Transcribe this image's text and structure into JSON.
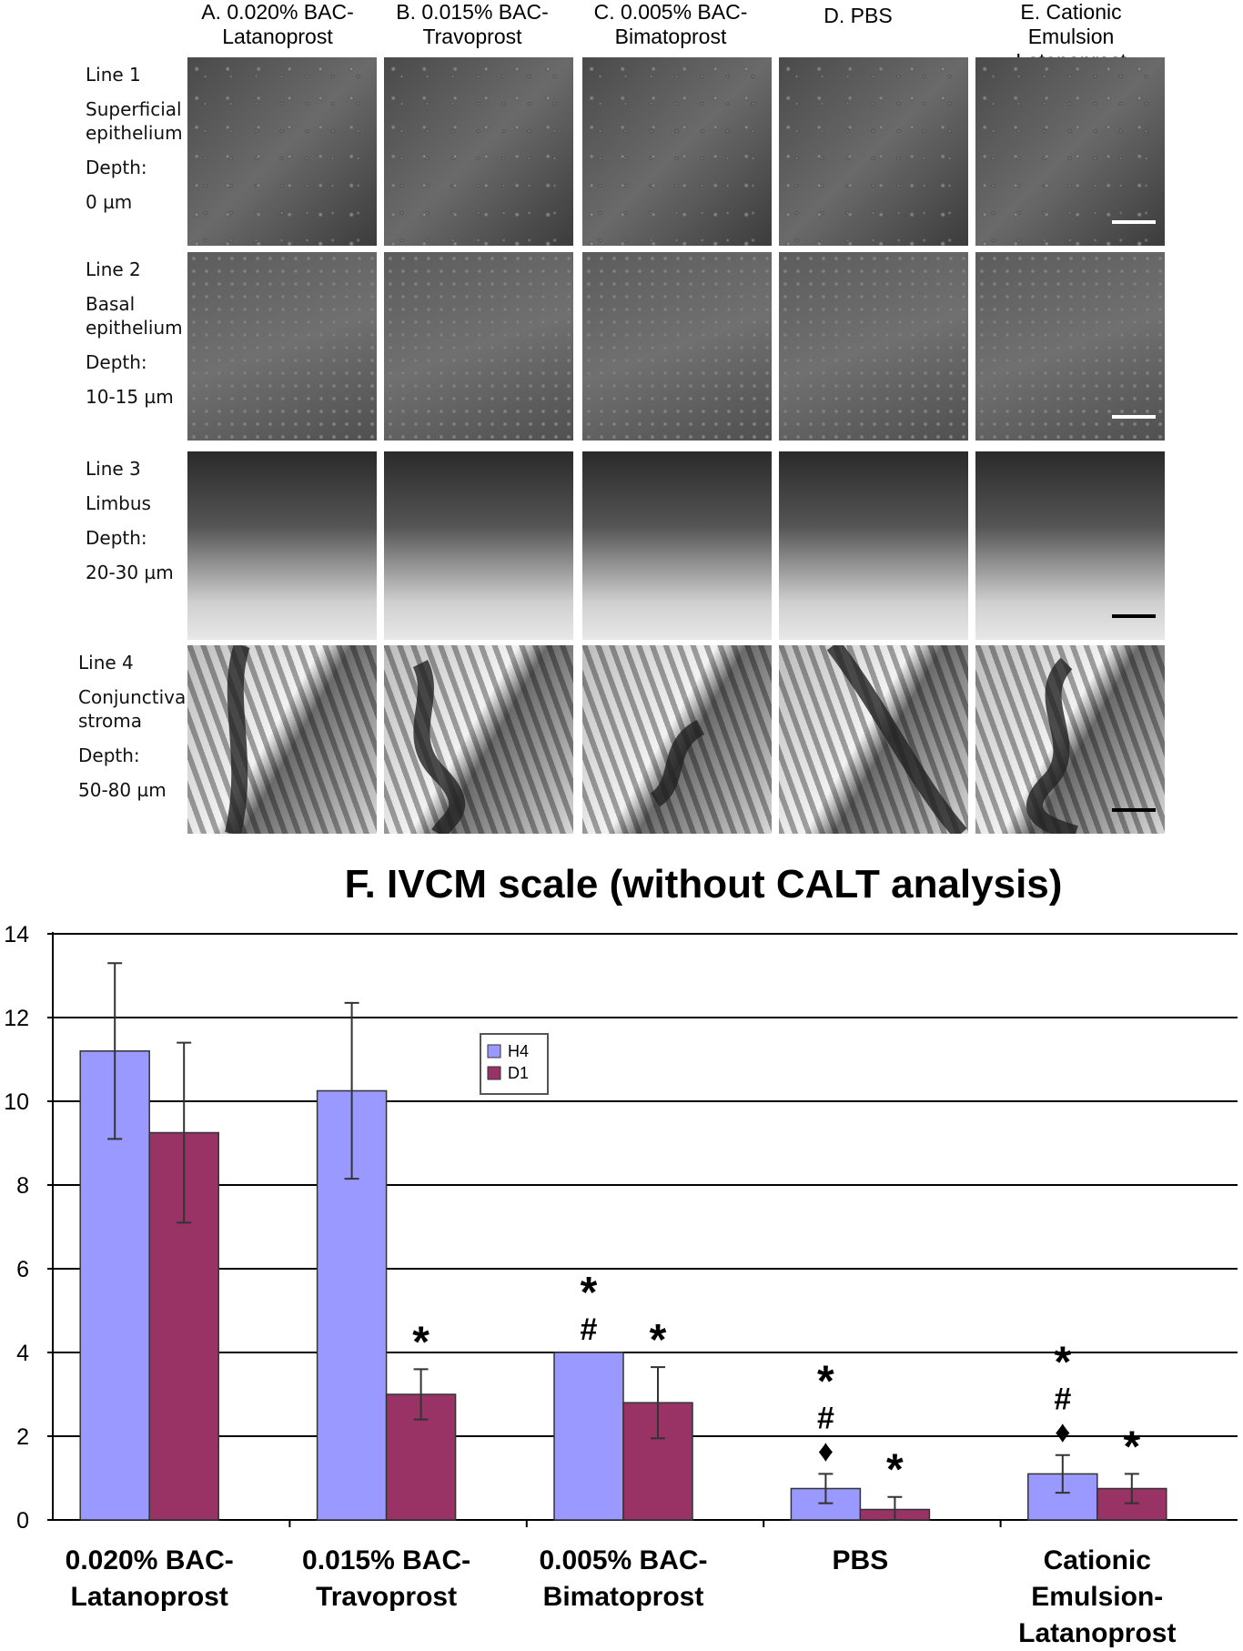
{
  "figure": {
    "column_titles": [
      "A. 0.020% BAC-\nLatanoprost",
      "B. 0.015% BAC-\nTravoprost",
      "C. 0.005% BAC-\nBimatoprost",
      "D. PBS",
      "E. Cationic Emulsion\nLatanoprost"
    ],
    "rows": [
      {
        "line": "Line 1",
        "region": "Superficial\nepithelium",
        "depth_label": "Depth:",
        "depth": "0 µm"
      },
      {
        "line": "Line 2",
        "region": "Basal\nepithelium",
        "depth_label": "Depth:",
        "depth": "10-15 µm"
      },
      {
        "line": "Line 3",
        "region": "Limbus",
        "depth_label": "Depth:",
        "depth": "20-30 µm"
      },
      {
        "line": "Line 4",
        "region": "Conjunctival\nstroma",
        "depth_label": "Depth:",
        "depth": "50-80 µm"
      }
    ],
    "scalebar_colors": [
      "#ffffff",
      "#ffffff",
      "#000000",
      "#000000"
    ]
  },
  "chart_data": {
    "type": "bar",
    "title": "F.   IVCM scale (without CALT analysis)",
    "categories": [
      "0.020% BAC-\nLatanoprost",
      "0.015% BAC-\nTravoprost",
      "0.005% BAC-\nBimatoprost",
      "PBS",
      "Cationic\nEmulsion-\nLatanoprost"
    ],
    "series": [
      {
        "name": "H4",
        "color": "#9999ff",
        "values": [
          11.2,
          10.25,
          4.0,
          0.75,
          1.1
        ],
        "errors": [
          2.1,
          2.1,
          0,
          0.35,
          0.45
        ]
      },
      {
        "name": "D1",
        "color": "#993366",
        "values": [
          9.25,
          3.0,
          2.8,
          0.25,
          0.75
        ],
        "errors": [
          2.15,
          0.6,
          0.85,
          0.3,
          0.35
        ]
      }
    ],
    "significance": [
      [
        "",
        ""
      ],
      [
        "",
        "*"
      ],
      [
        "*\n#",
        "*"
      ],
      [
        "*\n#\n♦",
        "*"
      ],
      [
        "*\n#\n♦",
        "*"
      ]
    ],
    "ylim": [
      0,
      14
    ],
    "yticks": [
      0,
      2,
      4,
      6,
      8,
      10,
      12,
      14
    ],
    "grid": true,
    "legend_position": "top-center",
    "xlabel": "",
    "ylabel": ""
  }
}
